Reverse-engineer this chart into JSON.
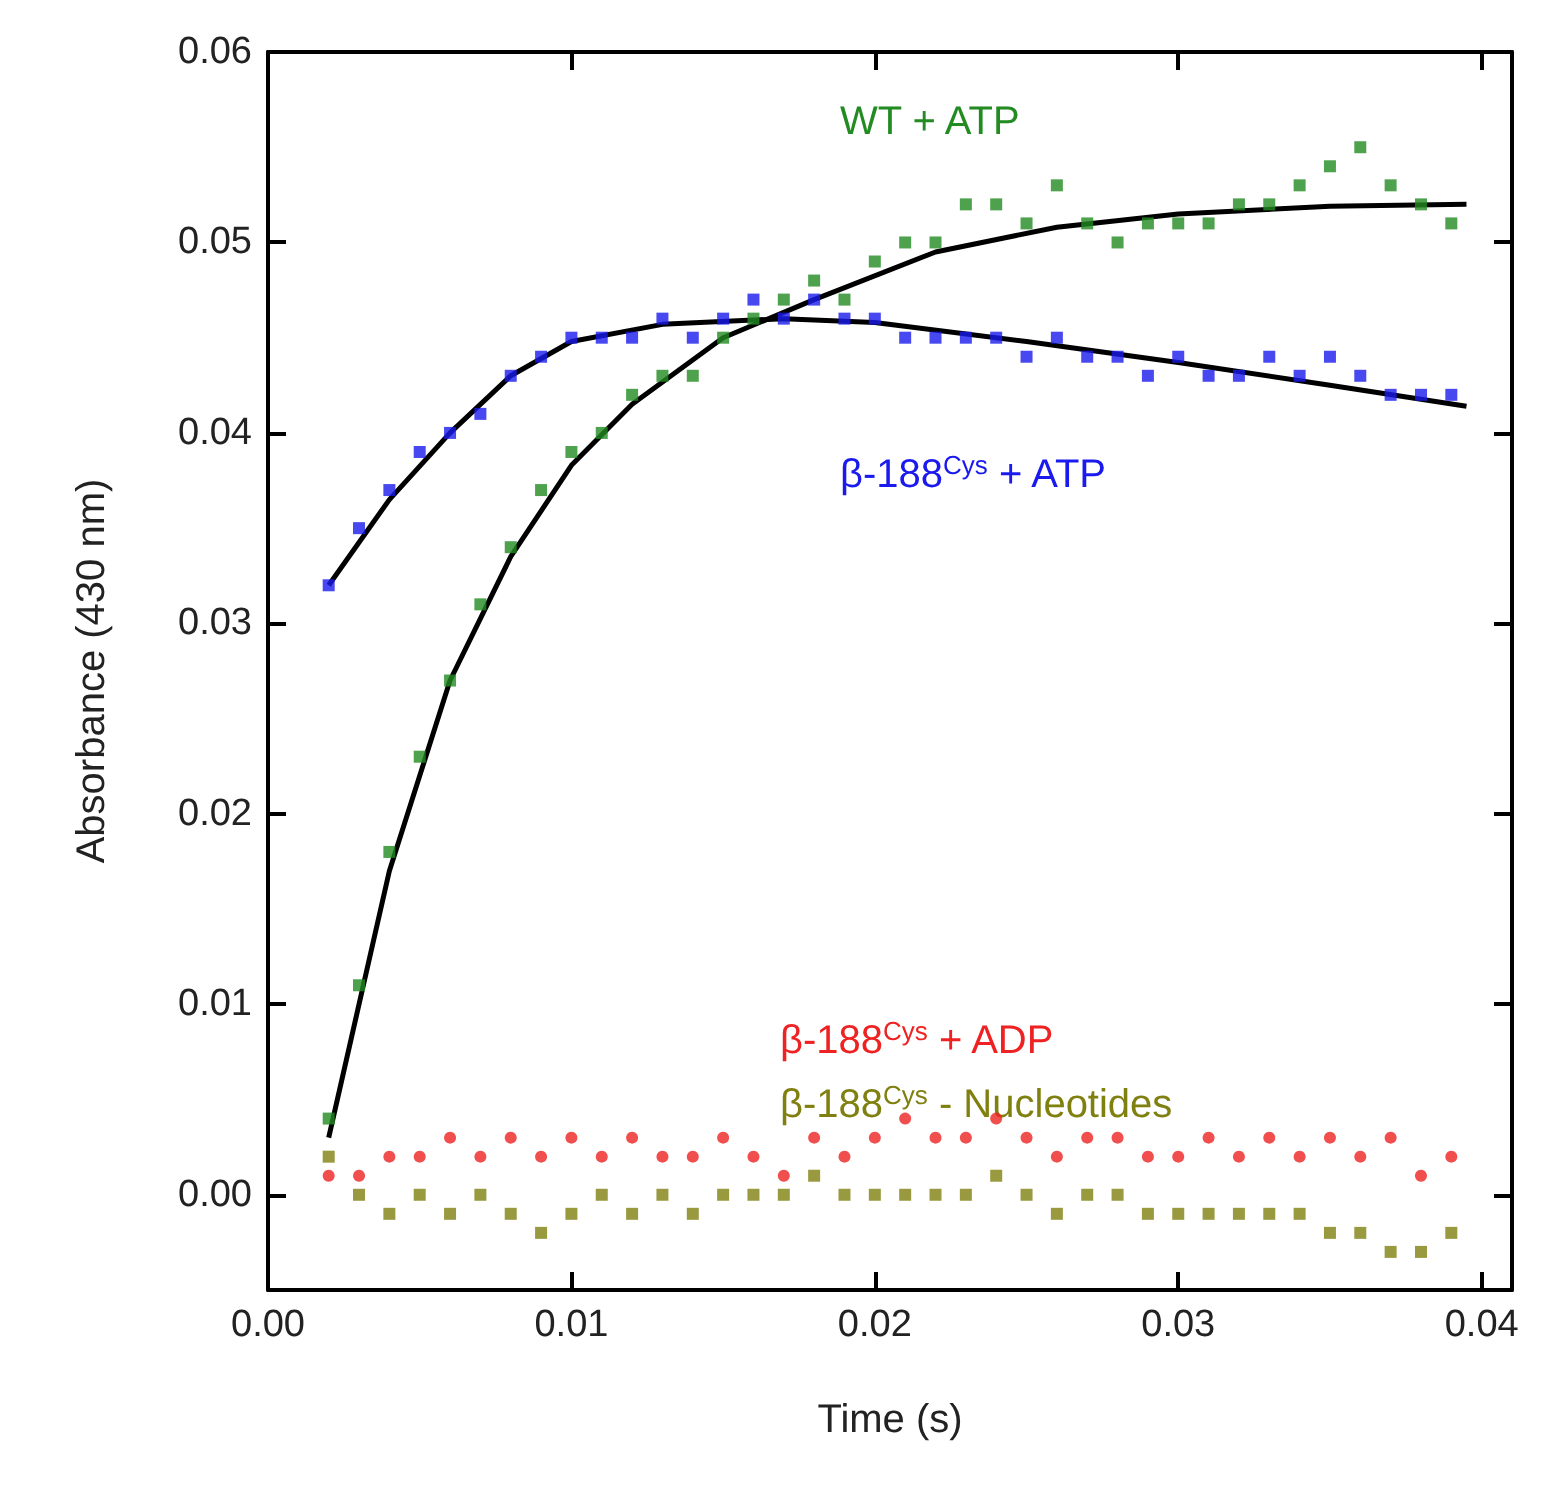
{
  "chart_data": {
    "type": "scatter",
    "xlabel": "Time (s)",
    "ylabel": "Absorbance (430 nm)",
    "xlim": [
      0,
      0.041
    ],
    "ylim": [
      -0.005,
      0.06
    ],
    "xticks": [
      {
        "value": 0,
        "label": "0.00"
      },
      {
        "value": 0.01,
        "label": "0.01"
      },
      {
        "value": 0.02,
        "label": "0.02"
      },
      {
        "value": 0.03,
        "label": "0.03"
      },
      {
        "value": 0.04,
        "label": "0.04"
      }
    ],
    "yticks": [
      {
        "value": 0,
        "label": "0.00"
      },
      {
        "value": 0.01,
        "label": "0.01"
      },
      {
        "value": 0.02,
        "label": "0.02"
      },
      {
        "value": 0.03,
        "label": "0.03"
      },
      {
        "value": 0.04,
        "label": "0.04"
      },
      {
        "value": 0.05,
        "label": "0.05"
      },
      {
        "value": 0.06,
        "label": "0.06"
      }
    ],
    "x": [
      0.002,
      0.003,
      0.004,
      0.005,
      0.006,
      0.007,
      0.008,
      0.009,
      0.01,
      0.011,
      0.012,
      0.013,
      0.014,
      0.015,
      0.016,
      0.017,
      0.018,
      0.019,
      0.02,
      0.021,
      0.022,
      0.023,
      0.024,
      0.025,
      0.026,
      0.027,
      0.028,
      0.029,
      0.03,
      0.031,
      0.032,
      0.033,
      0.034,
      0.035,
      0.036,
      0.037,
      0.038,
      0.039
    ],
    "grid": false,
    "legend": false,
    "marker": "square",
    "series": [
      {
        "name": "WT + ATP",
        "color": "#228b22",
        "values": [
          0.004,
          0.011,
          0.018,
          0.023,
          0.027,
          0.031,
          0.034,
          0.037,
          0.039,
          0.04,
          0.042,
          0.043,
          0.043,
          0.045,
          0.046,
          0.047,
          0.048,
          0.047,
          0.049,
          0.05,
          0.05,
          0.052,
          0.052,
          0.051,
          0.053,
          0.051,
          0.05,
          0.051,
          0.051,
          0.051,
          0.052,
          0.052,
          0.053,
          0.054,
          0.055,
          0.053,
          0.052,
          0.051
        ]
      },
      {
        "name": "β-188$^{Cys}$ + ATP",
        "color": "#1a1aee",
        "values": [
          0.032,
          0.035,
          0.037,
          0.039,
          0.04,
          0.041,
          0.043,
          0.044,
          0.045,
          0.045,
          0.045,
          0.046,
          0.045,
          0.046,
          0.047,
          0.046,
          0.047,
          0.046,
          0.046,
          0.045,
          0.045,
          0.045,
          0.045,
          0.044,
          0.045,
          0.044,
          0.044,
          0.043,
          0.044,
          0.043,
          0.043,
          0.044,
          0.043,
          0.044,
          0.043,
          0.042,
          0.042,
          0.042
        ]
      },
      {
        "name": "β-188$^{Cys}$ + ADP",
        "color": "#ee2222",
        "marker": "circle",
        "values": [
          0.001,
          0.001,
          0.002,
          0.002,
          0.003,
          0.002,
          0.003,
          0.002,
          0.003,
          0.002,
          0.003,
          0.002,
          0.002,
          0.003,
          0.002,
          0.001,
          0.003,
          0.002,
          0.003,
          0.004,
          0.003,
          0.003,
          0.004,
          0.003,
          0.002,
          0.003,
          0.003,
          0.002,
          0.002,
          0.003,
          0.002,
          0.003,
          0.002,
          0.003,
          0.002,
          0.003,
          0.001,
          0.002
        ]
      },
      {
        "name": "β-188$^{Cys}$ - Nucleotides",
        "color": "#808010",
        "values": [
          0.002,
          0.0,
          -0.001,
          0.0,
          -0.001,
          0.0,
          -0.001,
          -0.002,
          -0.001,
          0.0,
          -0.001,
          0.0,
          -0.001,
          0.0,
          0.0,
          0.0,
          0.001,
          0.0,
          0.0,
          0.0,
          0.0,
          0.0,
          0.001,
          0.0,
          -0.001,
          0.0,
          0.0,
          -0.001,
          -0.001,
          -0.001,
          -0.001,
          -0.001,
          -0.001,
          -0.002,
          -0.002,
          -0.003,
          -0.003,
          -0.002
        ]
      },
      {
        "type": "line",
        "color": "#000000",
        "marker": "none",
        "x": [
          0.002,
          0.004,
          0.006,
          0.008,
          0.01,
          0.012,
          0.015,
          0.018,
          0.022,
          0.026,
          0.03,
          0.035,
          0.0395
        ],
        "values": [
          0.003,
          0.017,
          0.027,
          0.0335,
          0.0383,
          0.0415,
          0.045,
          0.047,
          0.0495,
          0.0508,
          0.0515,
          0.0519,
          0.052
        ]
      },
      {
        "type": "line",
        "color": "#000000",
        "marker": "none",
        "x": [
          0.002,
          0.004,
          0.006,
          0.008,
          0.01,
          0.013,
          0.017,
          0.02,
          0.025,
          0.03,
          0.035,
          0.0395
        ],
        "values": [
          0.032,
          0.0365,
          0.04,
          0.043,
          0.0448,
          0.0457,
          0.046,
          0.0458,
          0.0448,
          0.0437,
          0.0425,
          0.0414
        ]
      }
    ]
  }
}
